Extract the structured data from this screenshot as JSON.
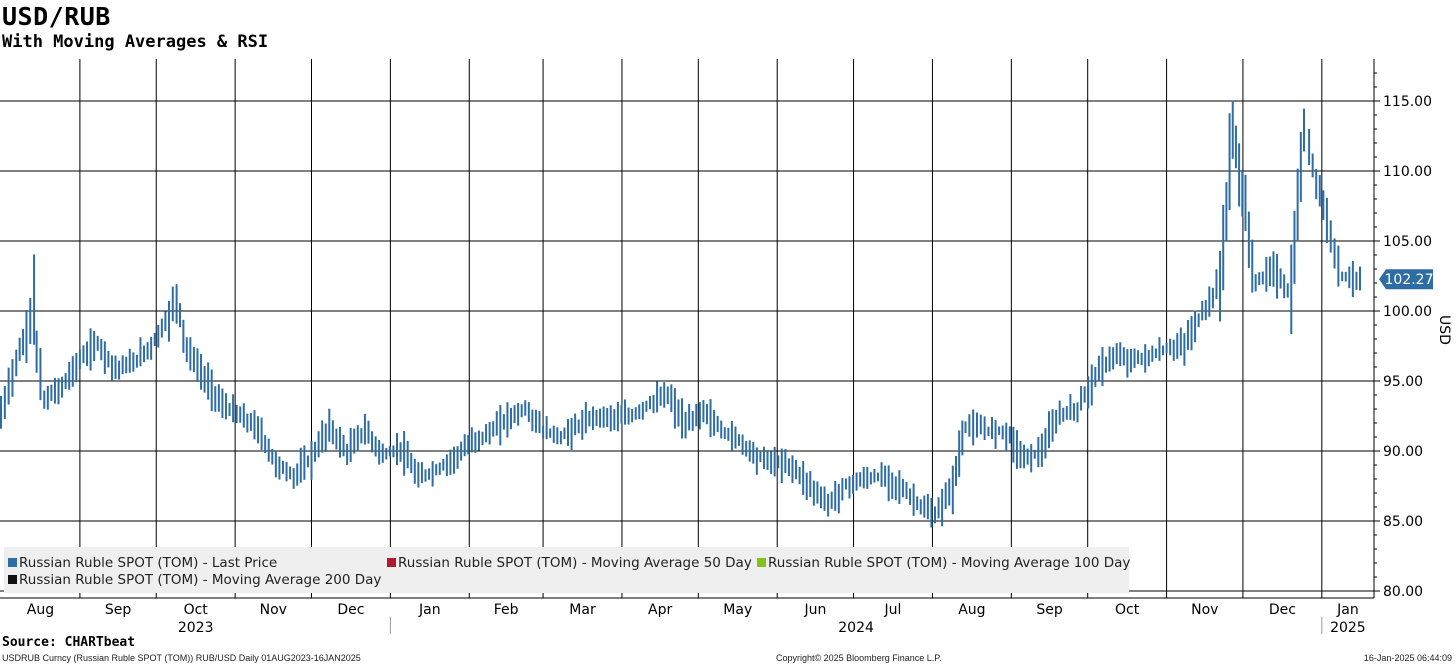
{
  "header": {
    "title": "USD/RUB",
    "subtitle": "With Moving Averages & RSI"
  },
  "legend": [
    {
      "label": "Russian Ruble SPOT (TOM) - Last Price",
      "color": "#2e6da4"
    },
    {
      "label": "Russian Ruble SPOT (TOM) - Moving Average 50 Day",
      "color": "#b4182c"
    },
    {
      "label": "Russian Ruble SPOT (TOM) - Moving Average 100 Day",
      "color": "#7fc31c"
    },
    {
      "label": "Russian Ruble SPOT (TOM) - Moving Average 200 Day",
      "color": "#111111"
    }
  ],
  "source": "Source: CHARTbeat",
  "footer": {
    "left": "USDRUB Curncy (Russian Ruble SPOT (TOM)) RUB/USD  Daily 01AUG2023-16JAN2025",
    "mid": "Copyright© 2025 Bloomberg Finance L.P.",
    "right": "16-Jan-2025 06:44:09"
  },
  "chart_data": {
    "type": "line",
    "title": "USD/RUB",
    "subtitle": "With Moving Averages & RSI",
    "ylabel": "USD",
    "ylim": [
      79.5,
      118
    ],
    "y_ticks": [
      "115.00",
      "110.00",
      "105.00",
      "100.00",
      "95.00",
      "90.00",
      "85.00",
      "80.00"
    ],
    "months": [
      "Aug",
      "Sep",
      "Oct",
      "Nov",
      "Dec",
      "Jan",
      "Feb",
      "Mar",
      "Apr",
      "May",
      "Jun",
      "Jul",
      "Aug",
      "Sep",
      "Oct",
      "Nov",
      "Dec",
      "Jan"
    ],
    "years": [
      "2023",
      "2024",
      "2025"
    ],
    "last_price_label": "102.27",
    "series": [
      {
        "name": "Russian Ruble SPOT (TOM) - Last Price",
        "color": "#2e6da4",
        "points": [
          [
            "2023-08-01",
            92.5
          ],
          [
            "2023-08-07",
            96.5
          ],
          [
            "2023-08-11",
            98.2
          ],
          [
            "2023-08-14",
            101.0
          ],
          [
            "2023-08-15",
            97.0
          ],
          [
            "2023-08-18",
            93.6
          ],
          [
            "2023-08-25",
            94.6
          ],
          [
            "2023-09-01",
            96.5
          ],
          [
            "2023-09-08",
            97.7
          ],
          [
            "2023-09-15",
            95.9
          ],
          [
            "2023-09-22",
            96.3
          ],
          [
            "2023-09-29",
            97.5
          ],
          [
            "2023-10-06",
            99.6
          ],
          [
            "2023-10-09",
            101.0
          ],
          [
            "2023-10-13",
            97.3
          ],
          [
            "2023-10-20",
            95.2
          ],
          [
            "2023-10-27",
            93.3
          ],
          [
            "2023-11-03",
            92.5
          ],
          [
            "2023-11-10",
            91.6
          ],
          [
            "2023-11-17",
            89.1
          ],
          [
            "2023-11-24",
            88.2
          ],
          [
            "2023-12-01",
            89.5
          ],
          [
            "2023-12-08",
            91.7
          ],
          [
            "2023-12-15",
            89.9
          ],
          [
            "2023-12-22",
            91.5
          ],
          [
            "2023-12-29",
            89.7
          ],
          [
            "2024-01-05",
            90.2
          ],
          [
            "2024-01-12",
            88.1
          ],
          [
            "2024-01-19",
            88.6
          ],
          [
            "2024-01-26",
            89.5
          ],
          [
            "2024-02-02",
            90.6
          ],
          [
            "2024-02-09",
            91.3
          ],
          [
            "2024-02-16",
            92.3
          ],
          [
            "2024-02-23",
            93.0
          ],
          [
            "2024-03-01",
            91.5
          ],
          [
            "2024-03-08",
            91.0
          ],
          [
            "2024-03-15",
            91.8
          ],
          [
            "2024-03-22",
            92.5
          ],
          [
            "2024-03-29",
            92.4
          ],
          [
            "2024-04-05",
            92.5
          ],
          [
            "2024-04-12",
            93.4
          ],
          [
            "2024-04-19",
            94.0
          ],
          [
            "2024-04-26",
            91.8
          ],
          [
            "2024-05-03",
            92.9
          ],
          [
            "2024-05-10",
            91.5
          ],
          [
            "2024-05-17",
            90.8
          ],
          [
            "2024-05-24",
            89.6
          ],
          [
            "2024-05-31",
            89.2
          ],
          [
            "2024-06-07",
            88.9
          ],
          [
            "2024-06-14",
            87.5
          ],
          [
            "2024-06-21",
            86.2
          ],
          [
            "2024-06-28",
            87.5
          ],
          [
            "2024-07-05",
            88.0
          ],
          [
            "2024-07-12",
            88.2
          ],
          [
            "2024-07-19",
            87.5
          ],
          [
            "2024-07-26",
            86.3
          ],
          [
            "2024-08-02",
            85.3
          ],
          [
            "2024-08-09",
            87.5
          ],
          [
            "2024-08-14",
            91.8
          ],
          [
            "2024-08-23",
            91.5
          ],
          [
            "2024-08-30",
            91.4
          ],
          [
            "2024-09-06",
            89.5
          ],
          [
            "2024-09-13",
            90.0
          ],
          [
            "2024-09-20",
            92.6
          ],
          [
            "2024-09-27",
            93.0
          ],
          [
            "2024-10-04",
            95.4
          ],
          [
            "2024-10-11",
            96.8
          ],
          [
            "2024-10-18",
            96.5
          ],
          [
            "2024-10-25",
            96.7
          ],
          [
            "2024-11-01",
            97.3
          ],
          [
            "2024-11-08",
            97.6
          ],
          [
            "2024-11-15",
            99.8
          ],
          [
            "2024-11-22",
            102.0
          ],
          [
            "2024-11-27",
            113.0
          ],
          [
            "2024-12-02",
            107.0
          ],
          [
            "2024-12-06",
            102.0
          ],
          [
            "2024-12-13",
            103.0
          ],
          [
            "2024-12-20",
            101.0
          ],
          [
            "2024-12-25",
            113.0
          ],
          [
            "2024-12-27",
            111.5
          ],
          [
            "2025-01-03",
            106.5
          ],
          [
            "2025-01-09",
            102.5
          ],
          [
            "2025-01-16",
            102.27
          ]
        ]
      },
      {
        "name": "Russian Ruble SPOT (TOM) - Moving Average 50 Day",
        "color": "#b4182c",
        "points": []
      },
      {
        "name": "Russian Ruble SPOT (TOM) - Moving Average 100 Day",
        "color": "#7fc31c",
        "points": []
      },
      {
        "name": "Russian Ruble SPOT (TOM) - Moving Average 200 Day",
        "color": "#111111",
        "points": []
      }
    ]
  }
}
